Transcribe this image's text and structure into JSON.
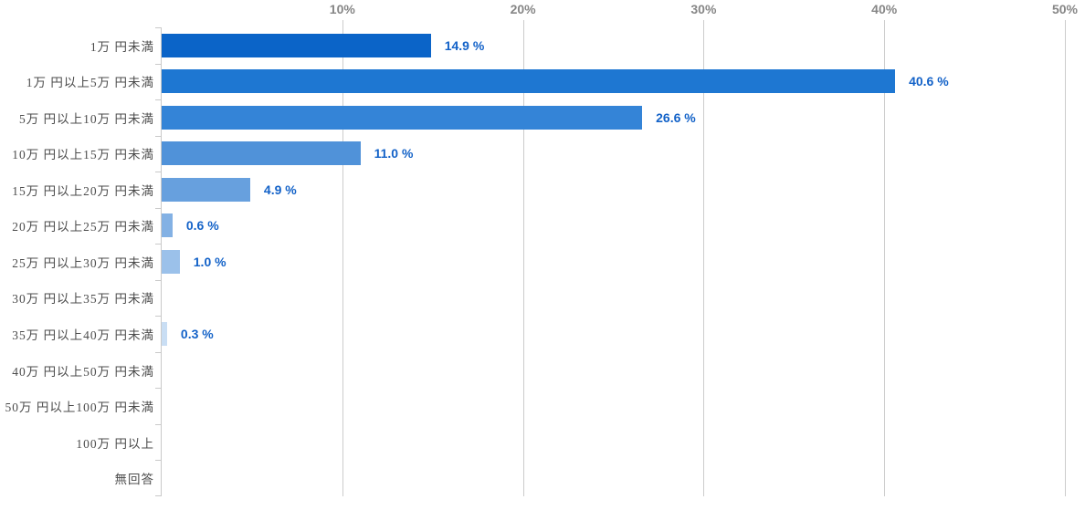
{
  "chart_data": {
    "type": "bar",
    "orientation": "horizontal",
    "title": "",
    "xlabel": "",
    "ylabel": "",
    "xlim": [
      0,
      50
    ],
    "grid": true,
    "legend": false,
    "axis_position": "top",
    "x_ticks": [
      {
        "value": 10,
        "label": "10%"
      },
      {
        "value": 20,
        "label": "20%"
      },
      {
        "value": 30,
        "label": "30%"
      },
      {
        "value": 40,
        "label": "40%"
      },
      {
        "value": 50,
        "label": "50%"
      }
    ],
    "categories": [
      "1万 円未満",
      "1万 円以上5万 円未満",
      "5万 円以上10万 円未満",
      "10万 円以上15万 円未満",
      "15万 円以上20万 円未満",
      "20万 円以上25万 円未満",
      "25万 円以上30万 円未満",
      "30万 円以上35万 円未満",
      "35万 円以上40万 円未満",
      "40万 円以上50万 円未満",
      "50万 円以上100万 円未満",
      "100万 円以上",
      "無回答"
    ],
    "values": [
      14.9,
      40.6,
      26.6,
      11.0,
      4.9,
      0.6,
      1.0,
      0,
      0.3,
      0,
      0,
      0,
      0
    ],
    "value_labels": [
      "14.9 %",
      "40.6 %",
      "26.6 %",
      "11.0 %",
      "4.9 %",
      "0.6 %",
      "1.0 %",
      "",
      "0.3 %",
      "",
      "",
      "",
      ""
    ],
    "bar_colors": [
      "#0b64c8",
      "#1e77d2",
      "#3484d7",
      "#5092d9",
      "#67a0de",
      "#83b1e4",
      "#9bc1ea",
      "#aecdef",
      "#c9def4",
      "#d9e8f8",
      "#e4eefa",
      "#eff5fc",
      "#f7fafd"
    ]
  },
  "colors": {
    "value_label": "#1362c8",
    "tick_label": "#868686",
    "category_label": "#4c4c4c",
    "grid_line": "#cccccc",
    "axis_line": "#c9c9c9",
    "background": "#ffffff"
  }
}
